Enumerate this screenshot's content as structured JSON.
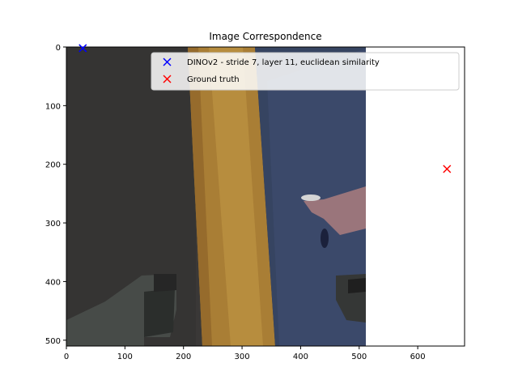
{
  "chart_data": {
    "type": "scatter",
    "title": "Image Correspondence",
    "xlabel": "",
    "ylabel": "",
    "xlim": [
      0,
      680
    ],
    "ylim": [
      510,
      0
    ],
    "y_inverted": true,
    "grid": false,
    "background_image": "photo-frame",
    "x_ticks": [
      "0",
      "100",
      "200",
      "300",
      "400",
      "500",
      "600"
    ],
    "y_ticks": [
      "0",
      "100",
      "200",
      "300",
      "400",
      "500"
    ],
    "legend_position": "upper-right",
    "series": [
      {
        "name": "DINOv2 - stride 7, layer 11, euclidean similarity",
        "color": "#0000ff",
        "marker": "x",
        "points": [
          {
            "x": 28,
            "y": 2
          }
        ]
      },
      {
        "name": "Ground truth",
        "color": "#ff0000",
        "marker": "x",
        "points": [
          {
            "x": 650,
            "y": 208
          }
        ]
      }
    ]
  }
}
